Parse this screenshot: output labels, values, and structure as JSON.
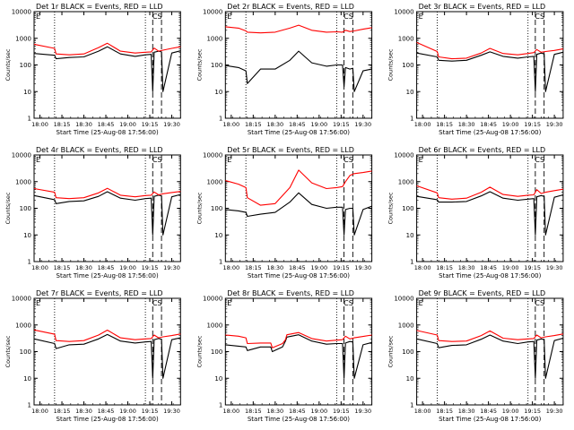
{
  "figure": {
    "colors": {
      "events": "#000000",
      "lld": "#ff0000",
      "axes": "#000000"
    },
    "panel_layout": "3x3 grid",
    "ylabel": "Counts/sec",
    "xlabel": "Start Time (25-Aug-08 17:56:00)",
    "y_ticks": [
      "1",
      "10",
      "100",
      "1000",
      "10000"
    ],
    "x_ticks": [
      "18:00",
      "18:15",
      "18:30",
      "18:45",
      "19:00",
      "19:15",
      "19:30"
    ],
    "corner_label": "E",
    "marker_label": "CS"
  },
  "chart_data": [
    {
      "type": "line",
      "title": "Det 1r BLACK = Events, RED = LLD",
      "xlabel": "Start Time (25-Aug-08 17:56:00)",
      "ylabel": "Counts/sec",
      "y_scale": "log",
      "ylim": [
        1,
        10000
      ],
      "x_range": [
        "17:56",
        "19:36"
      ],
      "vlines_dotted": [
        "18:10",
        "19:12"
      ],
      "vlines_dashed": [
        "19:17",
        "19:23"
      ],
      "series": [
        {
          "name": "Events",
          "color": "#000000",
          "x": [
            "17:56",
            "18:10",
            "18:11",
            "18:20",
            "18:30",
            "18:40",
            "18:46",
            "18:55",
            "19:05",
            "19:12",
            "19:16",
            "19:17",
            "19:18",
            "19:21",
            "19:23",
            "19:24",
            "19:30",
            "19:36"
          ],
          "y": [
            270,
            230,
            170,
            190,
            200,
            330,
            480,
            260,
            210,
            240,
            250,
            10,
            300,
            330,
            310,
            10,
            280,
            340
          ]
        },
        {
          "name": "LLD",
          "color": "#ff0000",
          "x": [
            "17:56",
            "18:10",
            "18:11",
            "18:20",
            "18:30",
            "18:40",
            "18:46",
            "18:55",
            "19:05",
            "19:12",
            "19:16",
            "19:18",
            "19:21",
            "19:24",
            "19:30",
            "19:36"
          ],
          "y": [
            600,
            420,
            260,
            240,
            260,
            450,
            650,
            330,
            280,
            300,
            310,
            430,
            330,
            360,
            420,
            480
          ]
        }
      ]
    },
    {
      "type": "line",
      "title": "Det 2r BLACK = Events, RED = LLD",
      "xlabel": "Start Time (25-Aug-08 17:56:00)",
      "ylabel": "Counts/sec",
      "y_scale": "log",
      "ylim": [
        1,
        10000
      ],
      "x_range": [
        "17:56",
        "19:36"
      ],
      "vlines_dotted": [
        "18:10",
        "19:12"
      ],
      "vlines_dashed": [
        "19:17",
        "19:23"
      ],
      "series": [
        {
          "name": "Events",
          "color": "#000000",
          "x": [
            "17:56",
            "18:05",
            "18:10",
            "18:11",
            "18:20",
            "18:30",
            "18:40",
            "18:46",
            "18:55",
            "19:05",
            "19:12",
            "19:16",
            "19:17",
            "19:18",
            "19:21",
            "19:23",
            "19:24",
            "19:30",
            "19:36"
          ],
          "y": [
            95,
            80,
            60,
            20,
            70,
            70,
            150,
            330,
            120,
            90,
            100,
            100,
            15,
            80,
            70,
            75,
            10,
            60,
            70
          ]
        },
        {
          "name": "LLD",
          "color": "#ff0000",
          "x": [
            "17:56",
            "18:05",
            "18:10",
            "18:11",
            "18:20",
            "18:30",
            "18:40",
            "18:46",
            "18:55",
            "19:05",
            "19:12",
            "19:16",
            "19:18",
            "19:21",
            "19:24",
            "19:30",
            "19:36"
          ],
          "y": [
            2700,
            2400,
            1900,
            1700,
            1600,
            1700,
            2400,
            3100,
            2000,
            1700,
            1750,
            1700,
            2000,
            1800,
            1900,
            2200,
            2500
          ]
        }
      ]
    },
    {
      "type": "line",
      "title": "Det 3r BLACK = Events, RED = LLD",
      "xlabel": "Start Time (25-Aug-08 17:56:00)",
      "ylabel": "Counts/sec",
      "y_scale": "log",
      "ylim": [
        1,
        10000
      ],
      "x_range": [
        "17:56",
        "19:36"
      ],
      "vlines_dotted": [
        "18:10",
        "19:12"
      ],
      "vlines_dashed": [
        "19:17",
        "19:23"
      ],
      "series": [
        {
          "name": "Events",
          "color": "#000000",
          "x": [
            "17:56",
            "18:10",
            "18:11",
            "18:20",
            "18:30",
            "18:40",
            "18:46",
            "18:55",
            "19:05",
            "19:12",
            "19:16",
            "19:17",
            "19:18",
            "19:21",
            "19:23",
            "19:24",
            "19:30",
            "19:36"
          ],
          "y": [
            280,
            200,
            150,
            140,
            150,
            230,
            310,
            210,
            180,
            200,
            210,
            10,
            250,
            280,
            260,
            10,
            250,
            300
          ]
        },
        {
          "name": "LLD",
          "color": "#ff0000",
          "x": [
            "17:56",
            "18:10",
            "18:11",
            "18:20",
            "18:30",
            "18:40",
            "18:46",
            "18:55",
            "19:05",
            "19:12",
            "19:16",
            "19:18",
            "19:21",
            "19:24",
            "19:30",
            "19:36"
          ],
          "y": [
            700,
            320,
            200,
            170,
            180,
            280,
            420,
            270,
            240,
            270,
            290,
            380,
            300,
            320,
            350,
            400
          ]
        }
      ]
    },
    {
      "type": "line",
      "title": "Det 4r BLACK = Events, RED = LLD",
      "xlabel": "Start Time (25-Aug-08 17:56:00)",
      "ylabel": "Counts/sec",
      "y_scale": "log",
      "ylim": [
        1,
        10000
      ],
      "x_range": [
        "17:56",
        "19:36"
      ],
      "vlines_dotted": [
        "18:10",
        "19:12"
      ],
      "vlines_dashed": [
        "19:17",
        "19:23"
      ],
      "series": [
        {
          "name": "Events",
          "color": "#000000",
          "x": [
            "17:56",
            "18:10",
            "18:11",
            "18:20",
            "18:30",
            "18:40",
            "18:46",
            "18:55",
            "19:05",
            "19:12",
            "19:16",
            "19:17",
            "19:18",
            "19:21",
            "19:23",
            "19:24",
            "19:30",
            "19:36"
          ],
          "y": [
            300,
            210,
            150,
            180,
            190,
            280,
            420,
            240,
            200,
            230,
            240,
            10,
            280,
            310,
            290,
            10,
            270,
            330
          ]
        },
        {
          "name": "LLD",
          "color": "#ff0000",
          "x": [
            "17:56",
            "18:10",
            "18:11",
            "18:20",
            "18:30",
            "18:40",
            "18:46",
            "18:55",
            "19:05",
            "19:12",
            "19:16",
            "19:18",
            "19:21",
            "19:24",
            "19:30",
            "19:36"
          ],
          "y": [
            550,
            400,
            250,
            230,
            250,
            380,
            560,
            310,
            270,
            300,
            310,
            410,
            320,
            350,
            390,
            430
          ]
        }
      ]
    },
    {
      "type": "line",
      "title": "Det 5r BLACK = Events, RED = LLD",
      "xlabel": "Start Time (25-Aug-08 17:56:00)",
      "ylabel": "Counts/sec",
      "y_scale": "log",
      "ylim": [
        1,
        10000
      ],
      "x_range": [
        "17:56",
        "19:36"
      ],
      "vlines_dotted": [
        "18:10",
        "19:12"
      ],
      "vlines_dashed": [
        "19:17",
        "19:23"
      ],
      "series": [
        {
          "name": "Events",
          "color": "#000000",
          "x": [
            "17:56",
            "18:05",
            "18:10",
            "18:11",
            "18:20",
            "18:30",
            "18:40",
            "18:46",
            "18:55",
            "19:05",
            "19:12",
            "19:16",
            "19:17",
            "19:18",
            "19:21",
            "19:23",
            "19:24",
            "19:30",
            "19:36"
          ],
          "y": [
            90,
            80,
            70,
            50,
            60,
            70,
            170,
            380,
            140,
            100,
            110,
            110,
            10,
            90,
            100,
            100,
            10,
            90,
            120
          ]
        },
        {
          "name": "LLD",
          "color": "#ff0000",
          "x": [
            "17:56",
            "18:05",
            "18:10",
            "18:11",
            "18:20",
            "18:30",
            "18:40",
            "18:46",
            "18:55",
            "19:05",
            "19:12",
            "19:16",
            "19:18",
            "19:21",
            "19:24",
            "19:30",
            "19:36"
          ],
          "y": [
            1100,
            800,
            600,
            250,
            130,
            150,
            600,
            2700,
            900,
            550,
            600,
            650,
            1000,
            1700,
            2000,
            2200,
            2500
          ]
        }
      ]
    },
    {
      "type": "line",
      "title": "Det 6r BLACK = Events, RED = LLD",
      "xlabel": "Start Time (25-Aug-08 17:56:00)",
      "ylabel": "Counts/sec",
      "y_scale": "log",
      "ylim": [
        1,
        10000
      ],
      "x_range": [
        "17:56",
        "19:36"
      ],
      "vlines_dotted": [
        "18:10",
        "19:12"
      ],
      "vlines_dashed": [
        "19:17",
        "19:23"
      ],
      "series": [
        {
          "name": "Events",
          "color": "#000000",
          "x": [
            "17:56",
            "18:10",
            "18:11",
            "18:20",
            "18:30",
            "18:40",
            "18:46",
            "18:55",
            "19:05",
            "19:12",
            "19:16",
            "19:17",
            "19:18",
            "19:21",
            "19:23",
            "19:24",
            "19:30",
            "19:36"
          ],
          "y": [
            280,
            210,
            170,
            170,
            180,
            290,
            420,
            240,
            200,
            220,
            230,
            10,
            270,
            300,
            280,
            10,
            260,
            320
          ]
        },
        {
          "name": "LLD",
          "color": "#ff0000",
          "x": [
            "17:56",
            "18:10",
            "18:11",
            "18:20",
            "18:30",
            "18:40",
            "18:46",
            "18:55",
            "19:05",
            "19:12",
            "19:16",
            "19:18",
            "19:21",
            "19:24",
            "19:30",
            "19:36"
          ],
          "y": [
            700,
            380,
            250,
            220,
            240,
            400,
            620,
            330,
            280,
            310,
            320,
            500,
            360,
            400,
            460,
            520
          ]
        }
      ]
    },
    {
      "type": "line",
      "title": "Det 7r BLACK = Events, RED = LLD",
      "xlabel": "Start Time (25-Aug-08 17:56:00)",
      "ylabel": "Counts/sec",
      "y_scale": "log",
      "ylim": [
        1,
        10000
      ],
      "x_range": [
        "17:56",
        "19:36"
      ],
      "vlines_dotted": [
        "18:10",
        "19:12"
      ],
      "vlines_dashed": [
        "19:17",
        "19:23"
      ],
      "series": [
        {
          "name": "Events",
          "color": "#000000",
          "x": [
            "17:56",
            "18:10",
            "18:11",
            "18:20",
            "18:30",
            "18:40",
            "18:46",
            "18:55",
            "19:05",
            "19:12",
            "19:16",
            "19:17",
            "19:18",
            "19:21",
            "19:23",
            "19:24",
            "19:30",
            "19:36"
          ],
          "y": [
            300,
            200,
            130,
            180,
            190,
            300,
            440,
            250,
            210,
            230,
            240,
            10,
            280,
            310,
            290,
            10,
            280,
            330
          ]
        },
        {
          "name": "LLD",
          "color": "#ff0000",
          "x": [
            "17:56",
            "18:10",
            "18:11",
            "18:20",
            "18:30",
            "18:40",
            "18:46",
            "18:55",
            "19:05",
            "19:12",
            "19:16",
            "19:18",
            "19:21",
            "19:24",
            "19:30",
            "19:36"
          ],
          "y": [
            650,
            450,
            260,
            240,
            260,
            420,
            640,
            330,
            280,
            300,
            310,
            420,
            330,
            360,
            400,
            460
          ]
        }
      ]
    },
    {
      "type": "line",
      "title": "Det 8r BLACK = Events, RED = LLD",
      "xlabel": "Start Time (25-Aug-08 17:56:00)",
      "ylabel": "Counts/sec",
      "y_scale": "log",
      "ylim": [
        1,
        10000
      ],
      "x_range": [
        "17:56",
        "19:36"
      ],
      "vlines_dotted": [
        "19:12"
      ],
      "vlines_dashed": [
        "19:17",
        "19:23"
      ],
      "series": [
        {
          "name": "Events",
          "color": "#000000",
          "x": [
            "17:56",
            "18:05",
            "18:10",
            "18:11",
            "18:20",
            "18:27",
            "18:28",
            "18:35",
            "18:37",
            "18:38",
            "18:46",
            "18:55",
            "19:05",
            "19:12",
            "19:16",
            "19:17",
            "19:18",
            "19:21",
            "19:23",
            "19:24",
            "19:30",
            "19:36"
          ],
          "y": [
            180,
            160,
            150,
            110,
            150,
            150,
            100,
            150,
            250,
            350,
            430,
            250,
            190,
            200,
            200,
            10,
            210,
            240,
            230,
            10,
            180,
            220
          ]
        },
        {
          "name": "LLD",
          "color": "#ff0000",
          "x": [
            "17:56",
            "18:05",
            "18:10",
            "18:11",
            "18:20",
            "18:27",
            "18:28",
            "18:35",
            "18:37",
            "18:38",
            "18:46",
            "18:55",
            "19:05",
            "19:12",
            "19:16",
            "19:18",
            "19:21",
            "19:24",
            "19:30",
            "19:36"
          ],
          "y": [
            420,
            380,
            330,
            200,
            210,
            210,
            140,
            200,
            280,
            430,
            520,
            310,
            250,
            270,
            280,
            380,
            300,
            330,
            370,
            420
          ]
        }
      ]
    },
    {
      "type": "line",
      "title": "Det 9r BLACK = Events, RED = LLD",
      "xlabel": "Start Time (25-Aug-08 17:56:00)",
      "ylabel": "Counts/sec",
      "y_scale": "log",
      "ylim": [
        1,
        10000
      ],
      "x_range": [
        "17:56",
        "19:36"
      ],
      "vlines_dotted": [
        "18:10",
        "19:12"
      ],
      "vlines_dashed": [
        "19:17",
        "19:23"
      ],
      "series": [
        {
          "name": "Events",
          "color": "#000000",
          "x": [
            "17:56",
            "18:10",
            "18:11",
            "18:20",
            "18:30",
            "18:40",
            "18:46",
            "18:55",
            "19:05",
            "19:12",
            "19:16",
            "19:17",
            "19:18",
            "19:21",
            "19:23",
            "19:24",
            "19:30",
            "19:36"
          ],
          "y": [
            300,
            200,
            140,
            170,
            180,
            290,
            420,
            250,
            200,
            230,
            240,
            10,
            270,
            300,
            280,
            10,
            260,
            320
          ]
        },
        {
          "name": "LLD",
          "color": "#ff0000",
          "x": [
            "17:56",
            "18:10",
            "18:11",
            "18:20",
            "18:30",
            "18:40",
            "18:46",
            "18:55",
            "19:05",
            "19:12",
            "19:16",
            "19:18",
            "19:21",
            "19:24",
            "19:30",
            "19:36"
          ],
          "y": [
            620,
            420,
            260,
            240,
            250,
            400,
            600,
            320,
            280,
            300,
            310,
            420,
            330,
            360,
            400,
            460
          ]
        }
      ]
    }
  ]
}
